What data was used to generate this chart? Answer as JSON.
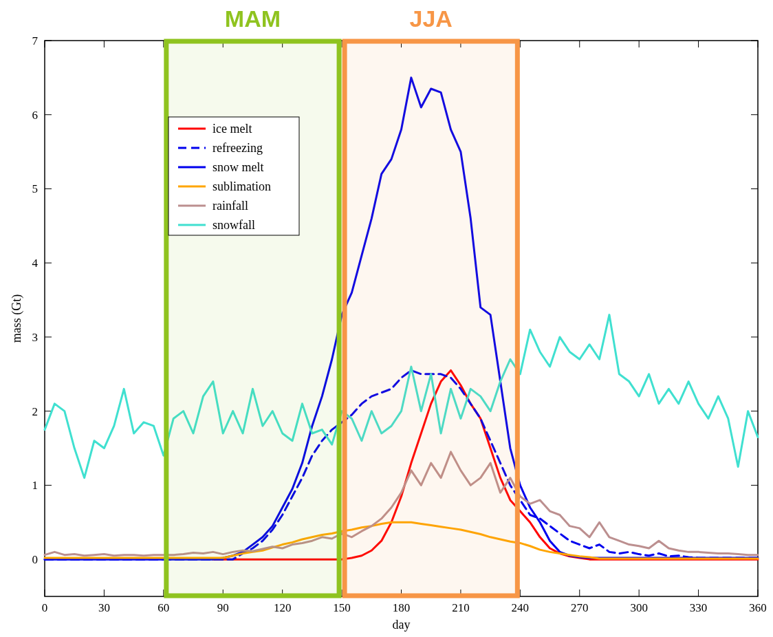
{
  "chart_data": {
    "type": "line",
    "xlabel": "day",
    "ylabel": "mass (Gt)",
    "x": [
      0,
      5,
      10,
      15,
      20,
      25,
      30,
      35,
      40,
      45,
      50,
      55,
      60,
      65,
      70,
      75,
      80,
      85,
      90,
      95,
      100,
      105,
      110,
      115,
      120,
      125,
      130,
      135,
      140,
      145,
      150,
      155,
      160,
      165,
      170,
      175,
      180,
      185,
      190,
      195,
      200,
      205,
      210,
      215,
      220,
      225,
      230,
      235,
      240,
      245,
      250,
      255,
      260,
      265,
      270,
      275,
      280,
      285,
      290,
      295,
      300,
      305,
      310,
      315,
      320,
      325,
      330,
      335,
      340,
      345,
      350,
      355,
      360
    ],
    "xlim": [
      0,
      360
    ],
    "xticks": [
      0,
      30,
      60,
      90,
      120,
      150,
      180,
      210,
      240,
      270,
      300,
      330,
      360
    ],
    "ylim": [
      -0.5,
      7
    ],
    "yticks": [
      0,
      1,
      2,
      3,
      4,
      5,
      6,
      7
    ],
    "grid": false,
    "legend": "top left",
    "series": [
      {
        "name": "ice melt",
        "color": "#ff0000",
        "values": [
          null,
          null,
          null,
          null,
          null,
          null,
          null,
          null,
          null,
          null,
          null,
          null,
          null,
          null,
          null,
          null,
          null,
          0,
          0,
          0,
          0,
          0,
          0,
          0,
          0,
          0,
          0,
          0,
          0,
          0,
          0,
          0.02,
          0.05,
          0.12,
          0.25,
          0.5,
          0.85,
          1.3,
          1.7,
          2.1,
          2.4,
          2.55,
          2.35,
          2.1,
          1.9,
          1.5,
          1.1,
          0.8,
          0.65,
          0.5,
          0.3,
          0.15,
          0.08,
          0.04,
          0.02,
          0,
          0,
          0,
          0,
          0,
          0,
          0,
          0,
          0,
          0,
          0,
          0,
          0,
          0,
          0,
          0,
          0,
          0
        ]
      },
      {
        "name": "refreezing",
        "color": "#0000ee",
        "line_style": "dashed",
        "values": [
          0,
          0,
          0,
          0,
          0,
          0,
          0,
          0,
          0,
          0,
          0,
          0,
          0,
          0,
          0,
          0,
          0,
          0,
          0,
          0,
          0.08,
          0.15,
          0.25,
          0.4,
          0.6,
          0.85,
          1.1,
          1.4,
          1.6,
          1.75,
          1.85,
          1.95,
          2.1,
          2.2,
          2.25,
          2.3,
          2.45,
          2.55,
          2.5,
          2.5,
          2.5,
          2.45,
          2.3,
          2.1,
          1.9,
          1.6,
          1.3,
          1.0,
          0.8,
          0.6,
          0.55,
          0.45,
          0.35,
          0.25,
          0.2,
          0.15,
          0.2,
          0.1,
          0.08,
          0.1,
          0.07,
          0.05,
          0.08,
          0.04,
          0.05,
          0.03,
          0.02,
          0.02,
          0.02,
          0.02,
          0.02,
          0.02,
          0.02
        ]
      },
      {
        "name": "snow melt",
        "color": "#0000ee",
        "values": [
          0,
          0,
          0,
          0,
          0,
          0,
          0,
          0,
          0,
          0,
          0,
          0,
          0,
          0,
          0,
          0,
          0,
          0,
          0.02,
          0.05,
          0.1,
          0.2,
          0.3,
          0.45,
          0.7,
          0.95,
          1.3,
          1.8,
          2.2,
          2.7,
          3.3,
          3.6,
          4.1,
          4.6,
          5.2,
          5.4,
          5.8,
          6.5,
          6.1,
          6.35,
          6.3,
          5.8,
          5.5,
          4.6,
          3.4,
          3.3,
          2.4,
          1.5,
          1.0,
          0.7,
          0.5,
          0.25,
          0.1,
          0.05,
          0.03,
          0.02,
          0.02,
          0.02,
          0.02,
          0.02,
          0.02,
          0.02,
          0.02,
          0.02,
          0.02,
          0.02,
          0.02,
          0.02,
          0.02,
          0.02,
          0.02,
          0.02,
          0.02
        ]
      },
      {
        "name": "sublimation",
        "color": "#ffa500",
        "values": [
          0.02,
          0.02,
          0.02,
          0.02,
          0.02,
          0.02,
          0.02,
          0.02,
          0.02,
          0.02,
          0.02,
          0.02,
          0.02,
          0.02,
          0.02,
          0.02,
          0.02,
          0.02,
          0.02,
          0.05,
          0.08,
          0.1,
          0.12,
          0.16,
          0.2,
          0.23,
          0.27,
          0.3,
          0.33,
          0.35,
          0.38,
          0.4,
          0.43,
          0.45,
          0.48,
          0.5,
          0.5,
          0.5,
          0.48,
          0.46,
          0.44,
          0.42,
          0.4,
          0.37,
          0.34,
          0.3,
          0.27,
          0.24,
          0.22,
          0.18,
          0.13,
          0.1,
          0.08,
          0.06,
          0.04,
          0.03,
          0.01,
          0.01,
          0.01,
          0.01,
          0.01,
          0.01,
          0.01,
          0.01,
          0.01,
          0.01,
          0.01,
          0.01,
          0.01,
          0.01,
          0.01,
          0.01,
          0.01
        ]
      },
      {
        "name": "rainfall",
        "color": "#bc8f8f",
        "values": [
          0.06,
          0.1,
          0.06,
          0.07,
          0.05,
          0.06,
          0.07,
          0.05,
          0.06,
          0.06,
          0.05,
          0.06,
          0.06,
          0.06,
          0.07,
          0.09,
          0.08,
          0.1,
          0.07,
          0.1,
          0.12,
          0.11,
          0.14,
          0.17,
          0.15,
          0.2,
          0.22,
          0.25,
          0.3,
          0.28,
          0.35,
          0.3,
          0.38,
          0.45,
          0.55,
          0.7,
          0.9,
          1.2,
          1.0,
          1.3,
          1.1,
          1.45,
          1.2,
          1.0,
          1.1,
          1.3,
          0.9,
          1.1,
          0.85,
          0.75,
          0.8,
          0.65,
          0.6,
          0.45,
          0.42,
          0.3,
          0.5,
          0.3,
          0.25,
          0.2,
          0.18,
          0.15,
          0.25,
          0.15,
          0.12,
          0.1,
          0.1,
          0.09,
          0.08,
          0.08,
          0.07,
          0.06,
          0.06
        ]
      },
      {
        "name": "snowfall",
        "color": "#40e0d0",
        "values": [
          1.75,
          2.1,
          2.0,
          1.5,
          1.1,
          1.6,
          1.5,
          1.8,
          2.3,
          1.7,
          1.85,
          1.8,
          1.4,
          1.9,
          2.0,
          1.7,
          2.2,
          2.4,
          1.7,
          2.0,
          1.7,
          2.3,
          1.8,
          2.0,
          1.7,
          1.6,
          2.1,
          1.7,
          1.75,
          1.55,
          2.0,
          1.9,
          1.6,
          2.0,
          1.7,
          1.8,
          2.0,
          2.6,
          2.0,
          2.5,
          1.7,
          2.3,
          1.9,
          2.3,
          2.2,
          2.0,
          2.4,
          2.7,
          2.5,
          3.1,
          2.8,
          2.6,
          3.0,
          2.8,
          2.7,
          2.9,
          2.7,
          3.3,
          2.5,
          2.4,
          2.2,
          2.5,
          2.1,
          2.3,
          2.1,
          2.4,
          2.1,
          1.9,
          2.2,
          1.9,
          1.25,
          2.0,
          1.65
        ]
      }
    ],
    "bands": [
      {
        "axis": "x",
        "from": 60,
        "to": 150,
        "label": "MAM",
        "color": "#8fc31f"
      },
      {
        "axis": "x",
        "from": 150,
        "to": 240,
        "label": "JJA",
        "color": "#f79646"
      }
    ]
  }
}
